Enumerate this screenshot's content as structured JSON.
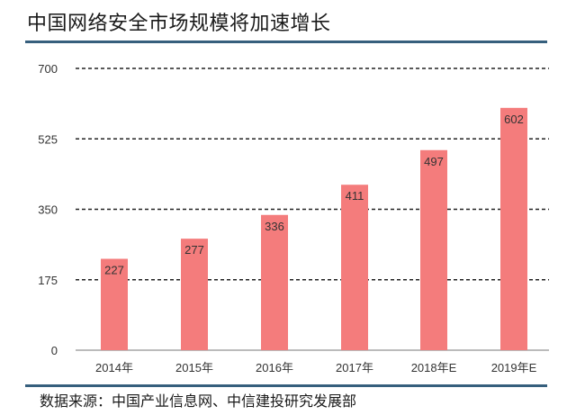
{
  "header": {
    "title": "中国网络安全市场规模将加速增长"
  },
  "footer": {
    "source": "数据来源：中国产业信息网、中信建投研究发展部"
  },
  "colors": {
    "bar": "#f47c7c",
    "rule": "#365f7d",
    "grid": "#222222"
  },
  "chart_data": {
    "type": "bar",
    "title": "中国网络安全市场规模将加速增长",
    "categories": [
      "2014年",
      "2015年",
      "2016年",
      "2017年",
      "2018年E",
      "2019年E"
    ],
    "values": [
      227,
      277,
      336,
      411,
      497,
      602
    ],
    "data_labels": [
      "227",
      "277",
      "336",
      "411",
      "497",
      "602"
    ],
    "ylim": [
      0,
      700
    ],
    "yticks": [
      0,
      175,
      350,
      525,
      700
    ],
    "ytick_labels": [
      "0",
      "175",
      "350",
      "525",
      "700"
    ],
    "grid": "dashed horizontal",
    "legend": "none"
  }
}
